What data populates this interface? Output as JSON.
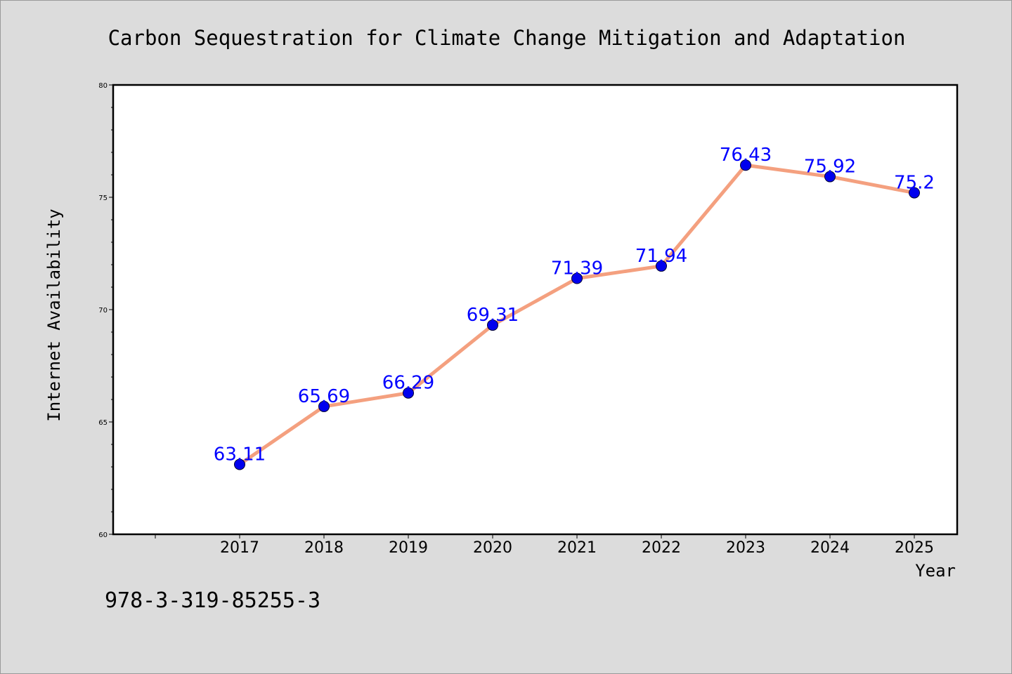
{
  "chart_data": {
    "type": "line",
    "title": "Carbon Sequestration for Climate Change Mitigation and Adaptation",
    "xlabel": "Year",
    "ylabel": "Internet Availability",
    "x": [
      "2017",
      "2018",
      "2019",
      "2020",
      "2021",
      "2022",
      "2023",
      "2024",
      "2025"
    ],
    "series": [
      {
        "values": [
          63.11,
          65.69,
          66.29,
          69.31,
          71.39,
          71.94,
          76.43,
          75.92,
          75.2
        ],
        "labels": [
          "63.11",
          "65.69",
          "66.29",
          "69.31",
          "71.39",
          "71.94",
          "76.43",
          "75.92",
          "75.2"
        ]
      }
    ],
    "ylim": [
      60,
      80
    ],
    "yticks": [
      "60",
      "65",
      "70",
      "75",
      "80"
    ],
    "grid": false,
    "legend": "none",
    "colors": {
      "line": "#f4a07f",
      "marker": "#0000ee",
      "label": "#0000ff"
    }
  },
  "footnote": "978-3-319-85255-3"
}
